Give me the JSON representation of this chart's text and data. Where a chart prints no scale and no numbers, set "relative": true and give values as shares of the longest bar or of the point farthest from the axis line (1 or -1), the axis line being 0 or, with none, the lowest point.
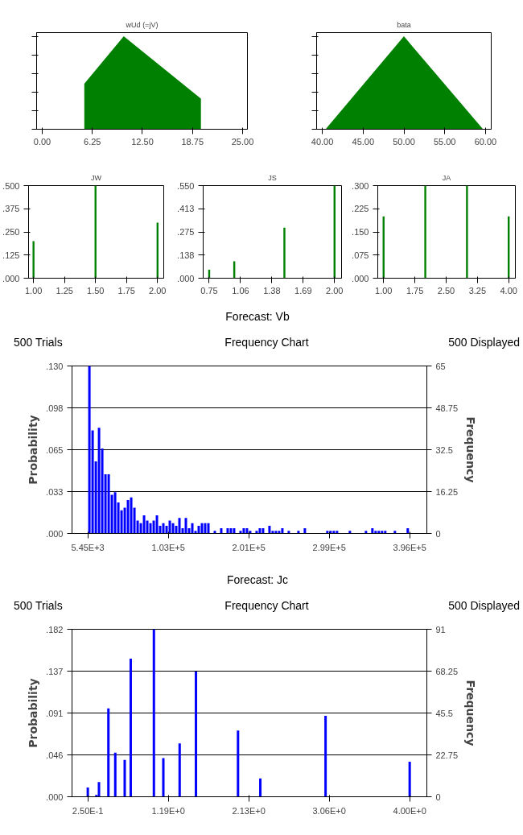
{
  "chart_data": [
    {
      "type": "area",
      "title": "wUd (=jV)",
      "x": [
        5.25,
        10.17,
        19.8
      ],
      "values": [
        0.49,
        1,
        0.33
      ],
      "color": "#008000",
      "relative": true,
      "tick_labels": "x",
      "xlim": [
        -0.7,
        25.6
      ],
      "xticks": [
        {
          "value": 0,
          "label": "0.00"
        },
        {
          "value": 6.25,
          "label": "6.25"
        },
        {
          "value": 12.5,
          "label": "12.50"
        },
        {
          "value": 18.75,
          "label": "18.75"
        },
        {
          "value": 25,
          "label": "25.00"
        }
      ]
    },
    {
      "type": "area",
      "title": "bata",
      "x": [
        40.4,
        50,
        59.7
      ],
      "values": [
        0,
        1,
        0
      ],
      "color": "#008000",
      "relative": true,
      "tick_labels": "x",
      "xlim": [
        39.3,
        60.7
      ],
      "xticks": [
        {
          "value": 40,
          "label": "40.00"
        },
        {
          "value": 45,
          "label": "45.00"
        },
        {
          "value": 50,
          "label": "50.00"
        },
        {
          "value": 55,
          "label": "55.00"
        },
        {
          "value": 60,
          "label": "60.00"
        }
      ]
    },
    {
      "type": "bar",
      "title": "JW",
      "x": [
        1,
        1.5,
        2
      ],
      "values": [
        0.2,
        0.5,
        0.3
      ],
      "color": "#008000",
      "xlim": [
        0.96,
        2.05
      ],
      "ylim": [
        0,
        0.5
      ],
      "xticks": [
        {
          "value": 1,
          "label": "1.00"
        },
        {
          "value": 1.25,
          "label": "1.25"
        },
        {
          "value": 1.5,
          "label": "1.50"
        },
        {
          "value": 1.75,
          "label": "1.75"
        },
        {
          "value": 2,
          "label": "2.00"
        }
      ],
      "yticks": [
        {
          "value": 0,
          "label": ".000"
        },
        {
          "value": 0.125,
          "label": ".125"
        },
        {
          "value": 0.25,
          "label": ".250"
        },
        {
          "value": 0.375,
          "label": ".375"
        },
        {
          "value": 0.5,
          "label": ".500"
        }
      ]
    },
    {
      "type": "bar",
      "title": "JS",
      "x": [
        0.75,
        1,
        1.5,
        2
      ],
      "values": [
        0.05,
        0.1,
        0.3,
        0.55
      ],
      "color": "#008000",
      "xlim": [
        0.69,
        2.07
      ],
      "ylim": [
        0,
        0.55
      ],
      "xticks": [
        {
          "value": 0.75,
          "label": "0.75"
        },
        {
          "value": 1.0625,
          "label": "1.06"
        },
        {
          "value": 1.375,
          "label": "1.38"
        },
        {
          "value": 1.6875,
          "label": "1.69"
        },
        {
          "value": 2,
          "label": "2.00"
        }
      ],
      "yticks": [
        {
          "value": 0,
          "label": ".000"
        },
        {
          "value": 0.1375,
          "label": ".138"
        },
        {
          "value": 0.275,
          "label": ".275"
        },
        {
          "value": 0.4125,
          "label": ".413"
        },
        {
          "value": 0.55,
          "label": ".550"
        }
      ]
    },
    {
      "type": "bar",
      "title": "JA",
      "x": [
        1,
        2,
        3,
        4
      ],
      "values": [
        0.2,
        0.3,
        0.3,
        0.2
      ],
      "color": "#008000",
      "xlim": [
        0.86,
        4.16
      ],
      "ylim": [
        0,
        0.3
      ],
      "xticks": [
        {
          "value": 1,
          "label": "1.00"
        },
        {
          "value": 1.75,
          "label": "1.75"
        },
        {
          "value": 2.5,
          "label": "2.50"
        },
        {
          "value": 3.25,
          "label": "3.25"
        },
        {
          "value": 4,
          "label": "4.00"
        }
      ],
      "yticks": [
        {
          "value": 0,
          "label": ".000"
        },
        {
          "value": 0.075,
          "label": ".075"
        },
        {
          "value": 0.15,
          "label": ".150"
        },
        {
          "value": 0.225,
          "label": ".225"
        },
        {
          "value": 0.3,
          "label": ".300"
        }
      ]
    },
    {
      "type": "bar",
      "title": "Forecast: Vb",
      "annotations": [
        "500 Trials",
        "Frequency Chart",
        "500 Displayed"
      ],
      "ylabel": "Probability",
      "y2label": "Frequency",
      "color": "#0000ff",
      "grid": "y",
      "x": [
        7400,
        11310,
        15210,
        19120,
        23020,
        26930,
        30830,
        34740,
        38650,
        42550,
        46460,
        50360,
        54270,
        58170,
        62080,
        65990,
        69890,
        73800,
        77700,
        81610,
        85510,
        89420,
        93320,
        97230,
        101140,
        105040,
        108950,
        112850,
        116760,
        120660,
        124570,
        128480,
        132380,
        136290,
        140190,
        144100,
        148000,
        151910,
        159720,
        167530,
        175340,
        179250,
        183150,
        190960,
        194870,
        198770,
        202680,
        210490,
        214390,
        218300,
        226110,
        230010,
        233920,
        237820,
        241730,
        249540,
        261260,
        269070,
        296400,
        300310,
        304220,
        308120,
        323740,
        343270,
        351080,
        354990,
        358890,
        362800,
        366700,
        378420,
        394040
      ],
      "values": [
        0.13,
        0.08,
        0.056,
        0.082,
        0.066,
        0.046,
        0.046,
        0.03,
        0.032,
        0.024,
        0.018,
        0.02,
        0.026,
        0.028,
        0.02,
        0.01,
        0.008,
        0.014,
        0.01,
        0.008,
        0.01,
        0.014,
        0.006,
        0.008,
        0.006,
        0.01,
        0.008,
        0.006,
        0.012,
        0.004,
        0.012,
        0.004,
        0.008,
        0.002,
        0.006,
        0.008,
        0.008,
        0.008,
        0.002,
        0.004,
        0.004,
        0.004,
        0.004,
        0.002,
        0.004,
        0.004,
        0.002,
        0.002,
        0.004,
        0.004,
        0.006,
        0.002,
        0.002,
        0.002,
        0.004,
        0.002,
        0.002,
        0.004,
        0.002,
        0.002,
        0.002,
        0.002,
        0.002,
        0.002,
        0.004,
        0.002,
        0.002,
        0.002,
        0.002,
        0.002,
        0.004
      ],
      "xlim": [
        -13700,
        417200
      ],
      "ylim": [
        0,
        0.13
      ],
      "y2lim": [
        0,
        65
      ],
      "xticks": [
        {
          "value": 5450,
          "label": "5.45E+3"
        },
        {
          "value": 103187.5,
          "label": "1.03E+5"
        },
        {
          "value": 200925,
          "label": "2.01E+5"
        },
        {
          "value": 298662.5,
          "label": "2.99E+5"
        },
        {
          "value": 396400,
          "label": "3.96E+5"
        }
      ],
      "yticks": [
        {
          "value": 0,
          "label": ".000"
        },
        {
          "value": 0.0325,
          "label": ".033"
        },
        {
          "value": 0.065,
          "label": ".065"
        },
        {
          "value": 0.0975,
          "label": ".098"
        },
        {
          "value": 0.13,
          "label": ".130"
        }
      ],
      "y2ticks": [
        0,
        16.25,
        32.5,
        48.75,
        65
      ]
    },
    {
      "type": "bar",
      "title": "Forecast: Jc",
      "annotations": [
        "500 Trials",
        "Frequency Chart",
        "500 Displayed"
      ],
      "ylabel": "Probability",
      "y2label": "Frequency",
      "color": "#0000ff",
      "grid": "y",
      "x": [
        0.25,
        0.35,
        0.38,
        0.49,
        0.57,
        0.68,
        0.75,
        1.02,
        1.13,
        1.32,
        1.51,
        2.0,
        2.26,
        3.02,
        4.0
      ],
      "values": [
        0.01,
        0.002,
        0.016,
        0.096,
        0.048,
        0.04,
        0.15,
        0.182,
        0.042,
        0.058,
        0.136,
        0.072,
        0.02,
        0.088,
        0.038
      ],
      "xlim": [
        0.066,
        4.2
      ],
      "ylim": [
        0,
        0.182
      ],
      "y2lim": [
        0,
        91
      ],
      "xticks": [
        {
          "value": 0.25,
          "label": "2.50E-1"
        },
        {
          "value": 1.1875,
          "label": "1.19E+0"
        },
        {
          "value": 2.125,
          "label": "2.13E+0"
        },
        {
          "value": 3.0625,
          "label": "3.06E+0"
        },
        {
          "value": 4,
          "label": "4.00E+0"
        }
      ],
      "yticks": [
        {
          "value": 0,
          "label": ".000"
        },
        {
          "value": 0.0455,
          "label": ".046"
        },
        {
          "value": 0.091,
          "label": ".091"
        },
        {
          "value": 0.1365,
          "label": ".137"
        },
        {
          "value": 0.182,
          "label": ".182"
        }
      ],
      "y2ticks": [
        0,
        22.75,
        45.5,
        68.25,
        91
      ]
    }
  ]
}
